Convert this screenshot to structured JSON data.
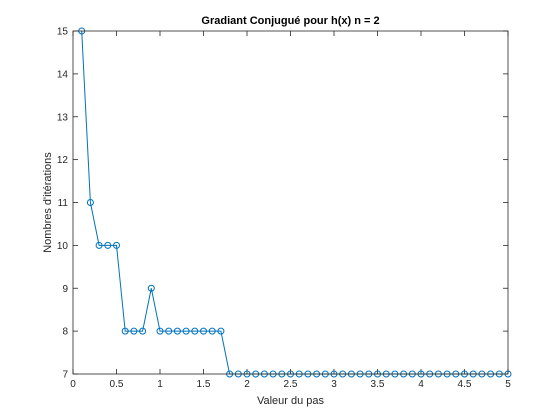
{
  "chart_data": {
    "type": "line",
    "title": "Gradiant Conjugué pour h(x) n = 2",
    "xlabel": "Valeur du pas",
    "ylabel": "Nombres d'itérations",
    "xlim": [
      0,
      5
    ],
    "ylim": [
      7,
      15
    ],
    "xticks": [
      0,
      0.5,
      1,
      1.5,
      2,
      2.5,
      3,
      3.5,
      4,
      4.5,
      5
    ],
    "xtick_labels": [
      "0",
      "0.5",
      "1",
      "1.5",
      "2",
      "2.5",
      "3",
      "3.5",
      "4",
      "4.5",
      "5"
    ],
    "yticks": [
      7,
      8,
      9,
      10,
      11,
      12,
      13,
      14,
      15
    ],
    "ytick_labels": [
      "7",
      "8",
      "9",
      "10",
      "11",
      "12",
      "13",
      "14",
      "15"
    ],
    "grid": false,
    "marker": "circle",
    "line_color": "#0072bd",
    "x": [
      0.1,
      0.2,
      0.3,
      0.4,
      0.5,
      0.6,
      0.7,
      0.8,
      0.9,
      1.0,
      1.1,
      1.2,
      1.3,
      1.4,
      1.5,
      1.6,
      1.7,
      1.8,
      1.9,
      2.0,
      2.1,
      2.2,
      2.3,
      2.4,
      2.5,
      2.6,
      2.7,
      2.8,
      2.9,
      3.0,
      3.1,
      3.2,
      3.3,
      3.4,
      3.5,
      3.6,
      3.7,
      3.8,
      3.9,
      4.0,
      4.1,
      4.2,
      4.3,
      4.4,
      4.5,
      4.6,
      4.7,
      4.8,
      4.9,
      5.0
    ],
    "y": [
      15,
      11,
      10,
      10,
      10,
      8,
      8,
      8,
      9,
      8,
      8,
      8,
      8,
      8,
      8,
      8,
      8,
      7,
      7,
      7,
      7,
      7,
      7,
      7,
      7,
      7,
      7,
      7,
      7,
      7,
      7,
      7,
      7,
      7,
      7,
      7,
      7,
      7,
      7,
      7,
      7,
      7,
      7,
      7,
      7,
      7,
      7,
      7,
      7,
      7
    ]
  }
}
